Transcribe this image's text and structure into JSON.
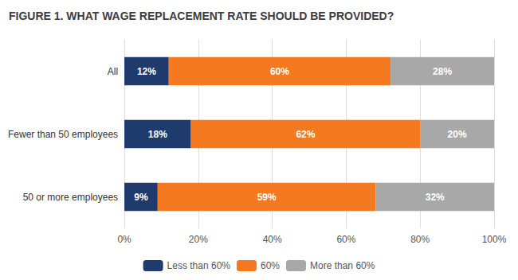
{
  "chart_data": {
    "type": "bar",
    "orientation": "horizontal",
    "stacked": true,
    "title": "FIGURE 1. WHAT WAGE REPLACEMENT RATE SHOULD BE PROVIDED?",
    "categories": [
      "50 or more employees",
      "Fewer than 50 employees",
      "All"
    ],
    "series": [
      {
        "name": "Less than 60%",
        "color": "#1f3b6e",
        "values": [
          9,
          18,
          12
        ],
        "value_labels": [
          "9%",
          "18%",
          "12%"
        ]
      },
      {
        "name": "60%",
        "color": "#f47920",
        "values": [
          59,
          62,
          60
        ],
        "value_labels": [
          "59%",
          "62%",
          "60%"
        ]
      },
      {
        "name": "More than 60%",
        "color": "#a8a8a8",
        "values": [
          32,
          20,
          28
        ],
        "value_labels": [
          "32%",
          "20%",
          "28%"
        ]
      }
    ],
    "xlim": [
      0,
      100
    ],
    "xticks": [
      {
        "value": 0,
        "label": "0%"
      },
      {
        "value": 20,
        "label": "20%"
      },
      {
        "value": 40,
        "label": "40%"
      },
      {
        "value": 60,
        "label": "60%"
      },
      {
        "value": 80,
        "label": "80%"
      },
      {
        "value": 100,
        "label": "100%"
      }
    ],
    "grid": true,
    "data_labels": true,
    "legend": "bottom"
  }
}
